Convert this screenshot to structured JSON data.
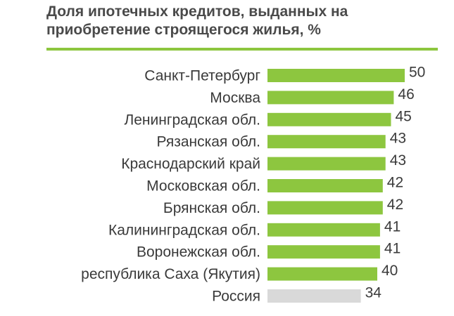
{
  "title": {
    "line1": "Доля ипотечных кредитов, выданных на",
    "line2": "приобретение строящегося жилья, %"
  },
  "colors": {
    "accent": "#8dc63f",
    "bar": "#8dc63f",
    "bar_highlight": "#d9d9d9",
    "text": "#3a3a3a",
    "title": "#4a4a4a"
  },
  "chart_data": {
    "type": "bar",
    "orientation": "horizontal",
    "categories": [
      "Санкт-Петербург",
      "Москва",
      "Ленинградская обл.",
      "Рязанская обл.",
      "Краснодарский край",
      "Московская обл.",
      "Брянская обл.",
      "Калининградская обл.",
      "Воронежская обл.",
      "республика Саха (Якутия)",
      "Россия"
    ],
    "values": [
      50,
      46,
      45,
      43,
      43,
      42,
      42,
      41,
      41,
      40,
      34
    ],
    "highlight": [
      "Россия"
    ],
    "title": "Доля ипотечных кредитов, выданных на приобретение строящегося жилья, %",
    "xlabel": "",
    "ylabel": "",
    "xlim": [
      0,
      50
    ],
    "grid": false,
    "legend": "none",
    "data_labels": true
  }
}
